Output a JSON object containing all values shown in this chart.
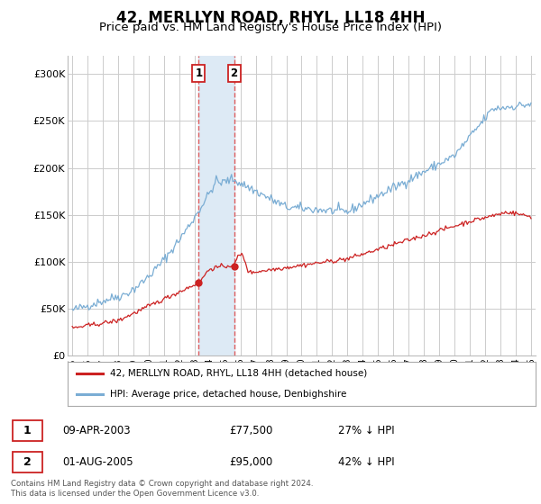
{
  "title": "42, MERLLYN ROAD, RHYL, LL18 4HH",
  "subtitle": "Price paid vs. HM Land Registry's House Price Index (HPI)",
  "title_fontsize": 12,
  "subtitle_fontsize": 9.5,
  "background_color": "#ffffff",
  "plot_bg_color": "#ffffff",
  "grid_color": "#cccccc",
  "hpi_color": "#7aadd4",
  "price_color": "#cc2222",
  "sale1_date_num": 2003.27,
  "sale1_price": 77500,
  "sale1_label": "1",
  "sale2_date_num": 2005.58,
  "sale2_price": 95000,
  "sale2_label": "2",
  "highlight_color": "#ddeaf5",
  "vline_color": "#dd4444",
  "ylim": [
    0,
    320000
  ],
  "xlim_start": 1994.7,
  "xlim_end": 2025.3,
  "yticks": [
    0,
    50000,
    100000,
    150000,
    200000,
    250000,
    300000
  ],
  "ytick_labels": [
    "£0",
    "£50K",
    "£100K",
    "£150K",
    "£200K",
    "£250K",
    "£300K"
  ],
  "xticks": [
    1995,
    1996,
    1997,
    1998,
    1999,
    2000,
    2001,
    2002,
    2003,
    2004,
    2005,
    2006,
    2007,
    2008,
    2009,
    2010,
    2011,
    2012,
    2013,
    2014,
    2015,
    2016,
    2017,
    2018,
    2019,
    2020,
    2021,
    2022,
    2023,
    2024,
    2025
  ],
  "legend_price_label": "42, MERLLYN ROAD, RHYL, LL18 4HH (detached house)",
  "legend_hpi_label": "HPI: Average price, detached house, Denbighshire",
  "table_rows": [
    {
      "num": "1",
      "date": "09-APR-2003",
      "price": "£77,500",
      "pct": "27% ↓ HPI"
    },
    {
      "num": "2",
      "date": "01-AUG-2005",
      "price": "£95,000",
      "pct": "42% ↓ HPI"
    }
  ],
  "footer": "Contains HM Land Registry data © Crown copyright and database right 2024.\nThis data is licensed under the Open Government Licence v3.0."
}
